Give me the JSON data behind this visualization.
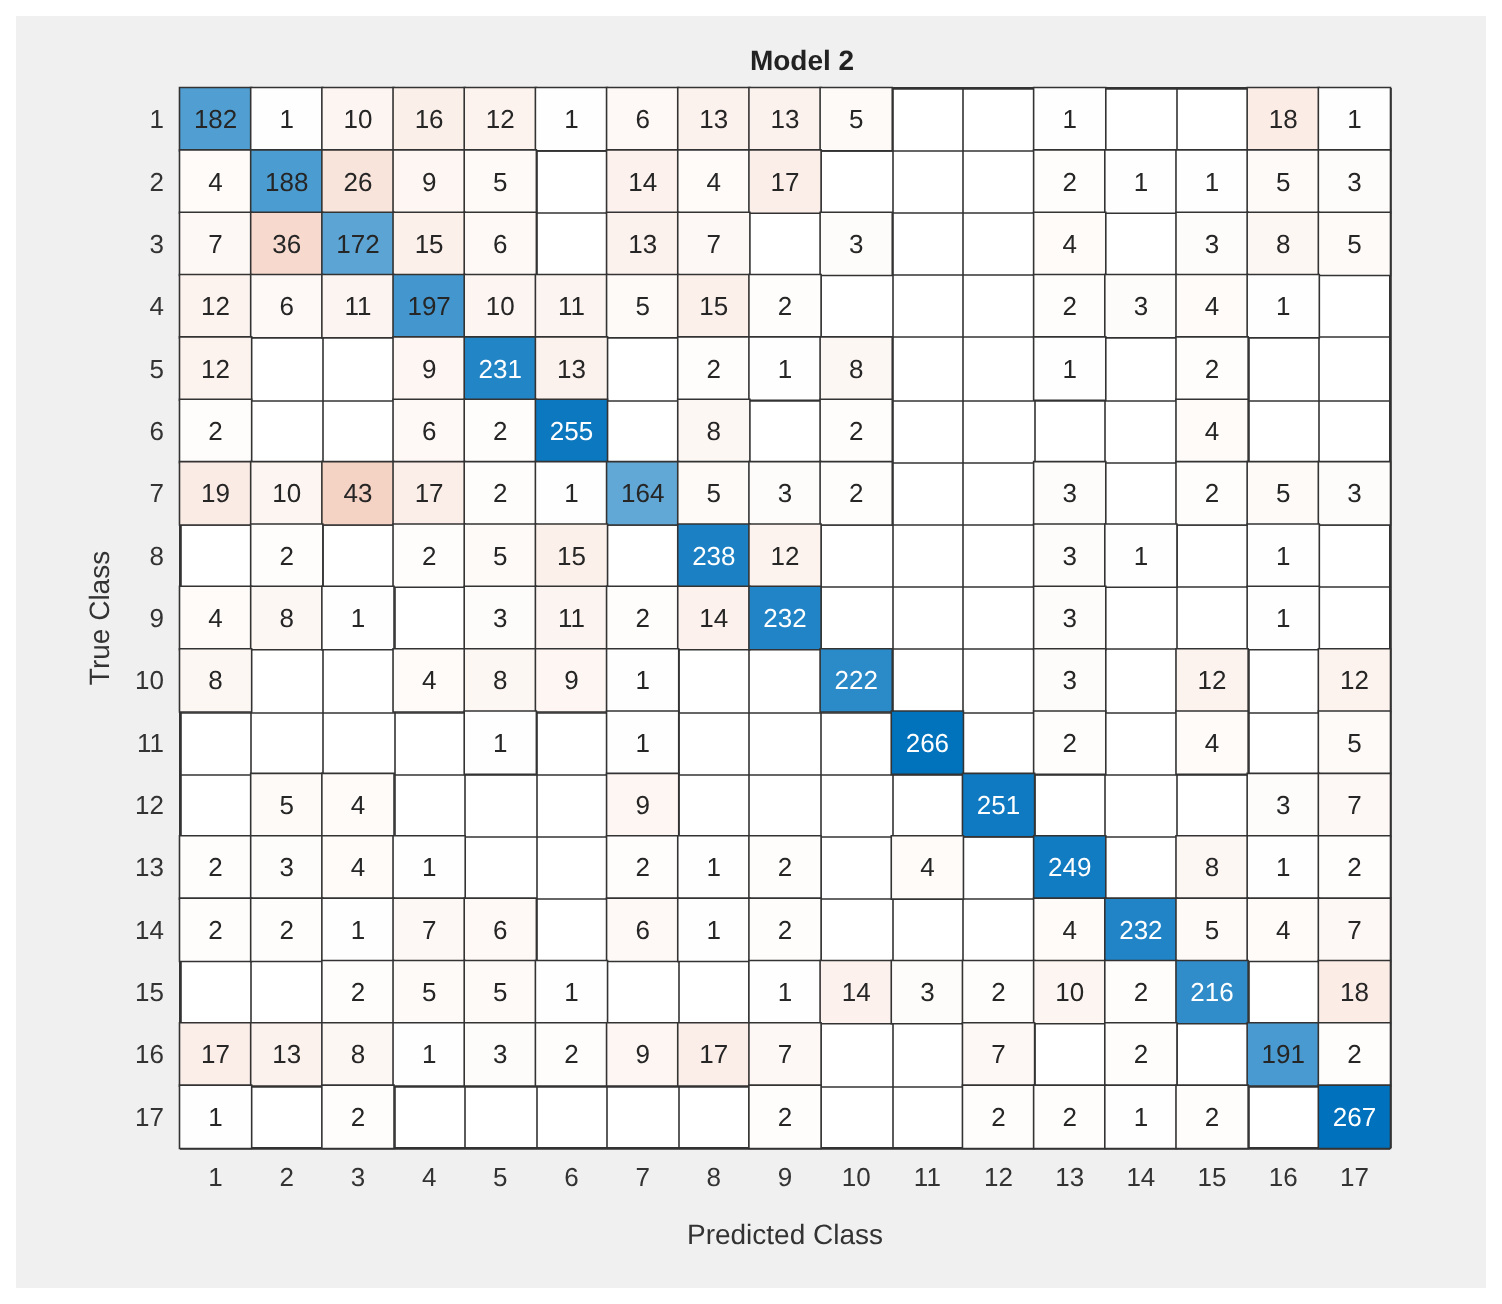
{
  "chart_data": {
    "type": "heatmap",
    "title": "Model 2",
    "xlabel": "Predicted Class",
    "ylabel": "True Class",
    "data_labels": true,
    "categories": [
      "1",
      "2",
      "3",
      "4",
      "5",
      "6",
      "7",
      "8",
      "9",
      "10",
      "11",
      "12",
      "13",
      "14",
      "15",
      "16",
      "17"
    ],
    "y_categories": [
      "1",
      "2",
      "3",
      "4",
      "5",
      "6",
      "7",
      "8",
      "9",
      "10",
      "11",
      "12",
      "13",
      "14",
      "15",
      "16",
      "17"
    ],
    "cells": [
      [
        182,
        1,
        10,
        16,
        12,
        1,
        6,
        13,
        13,
        5,
        null,
        null,
        1,
        null,
        null,
        18,
        1
      ],
      [
        4,
        188,
        26,
        9,
        5,
        null,
        14,
        4,
        17,
        null,
        null,
        null,
        2,
        1,
        1,
        5,
        3
      ],
      [
        7,
        36,
        172,
        15,
        6,
        null,
        13,
        7,
        null,
        3,
        null,
        null,
        4,
        null,
        3,
        8,
        5
      ],
      [
        12,
        6,
        11,
        197,
        10,
        11,
        5,
        15,
        2,
        null,
        null,
        null,
        2,
        3,
        4,
        1,
        null
      ],
      [
        12,
        null,
        null,
        9,
        231,
        13,
        null,
        2,
        1,
        8,
        null,
        null,
        1,
        null,
        2,
        null,
        null
      ],
      [
        2,
        null,
        null,
        6,
        2,
        255,
        null,
        8,
        null,
        2,
        null,
        null,
        null,
        null,
        4,
        null,
        null
      ],
      [
        19,
        10,
        43,
        17,
        2,
        1,
        164,
        5,
        3,
        2,
        null,
        null,
        3,
        null,
        2,
        5,
        3
      ],
      [
        null,
        2,
        null,
        2,
        5,
        15,
        null,
        238,
        12,
        null,
        null,
        null,
        3,
        1,
        null,
        1,
        null
      ],
      [
        4,
        8,
        1,
        null,
        3,
        11,
        2,
        14,
        232,
        null,
        null,
        null,
        3,
        null,
        null,
        1,
        null
      ],
      [
        8,
        null,
        null,
        4,
        8,
        9,
        1,
        null,
        null,
        222,
        null,
        null,
        3,
        null,
        12,
        null,
        12
      ],
      [
        null,
        null,
        null,
        null,
        1,
        null,
        1,
        null,
        null,
        null,
        266,
        null,
        2,
        null,
        4,
        null,
        5
      ],
      [
        null,
        5,
        4,
        null,
        null,
        null,
        9,
        null,
        null,
        null,
        null,
        251,
        null,
        null,
        null,
        3,
        7
      ],
      [
        2,
        3,
        4,
        1,
        null,
        null,
        2,
        1,
        2,
        null,
        4,
        null,
        249,
        null,
        8,
        1,
        2
      ],
      [
        2,
        2,
        1,
        7,
        6,
        null,
        6,
        1,
        2,
        null,
        null,
        null,
        4,
        232,
        5,
        4,
        7
      ],
      [
        null,
        null,
        2,
        5,
        5,
        1,
        null,
        null,
        1,
        14,
        3,
        2,
        10,
        2,
        216,
        null,
        18
      ],
      [
        17,
        13,
        8,
        1,
        3,
        2,
        9,
        17,
        7,
        null,
        null,
        7,
        null,
        2,
        null,
        191,
        2
      ],
      [
        1,
        null,
        2,
        null,
        null,
        null,
        null,
        null,
        2,
        null,
        null,
        2,
        2,
        1,
        2,
        null,
        267
      ]
    ]
  }
}
